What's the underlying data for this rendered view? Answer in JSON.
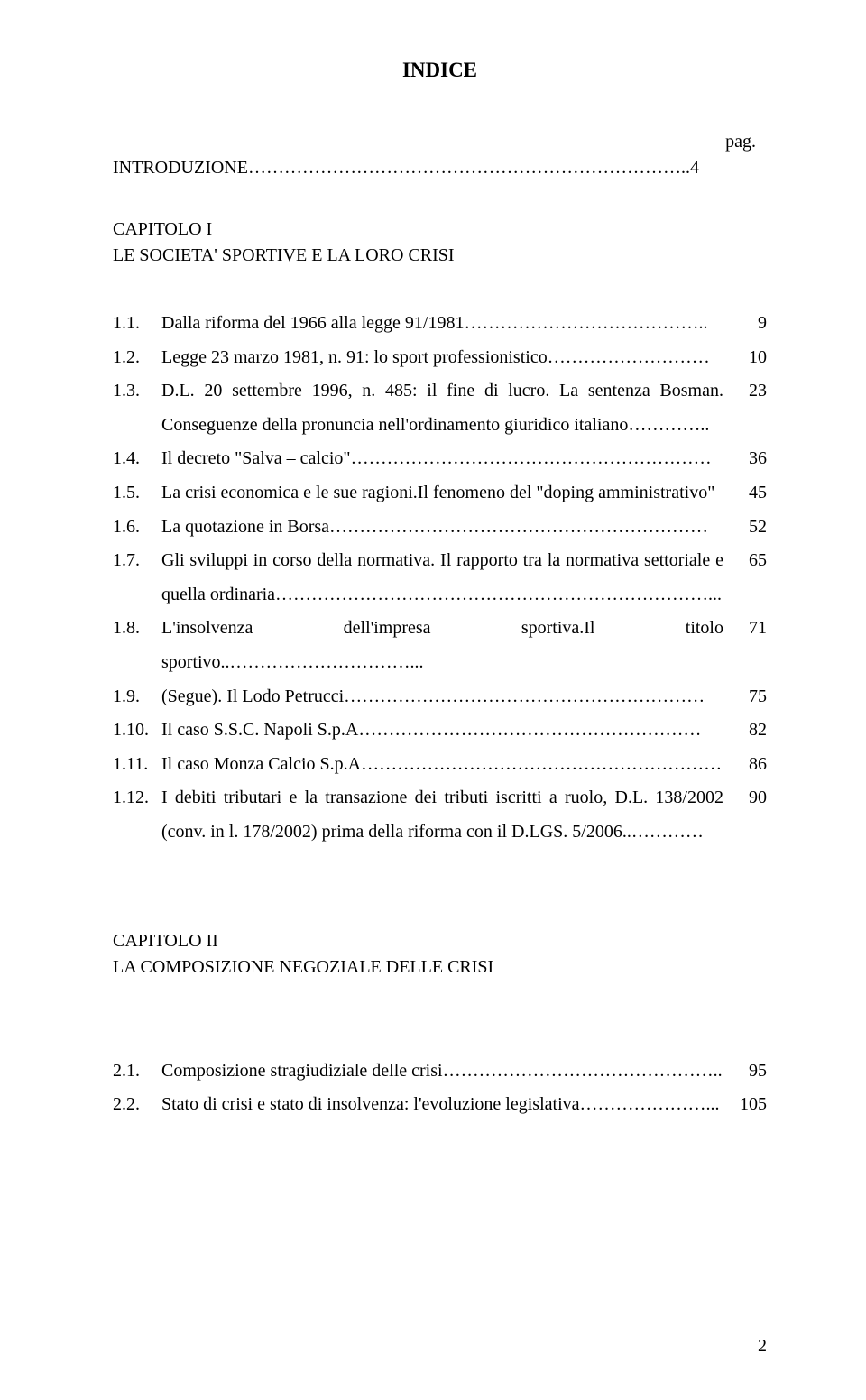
{
  "title": "INDICE",
  "pagLabel": "pag.",
  "intro": "INTRODUZIONE………………………………………………………………..4",
  "chapter1": {
    "header": "CAPITOLO I",
    "title": "LE SOCIETA' SPORTIVE E  LA LORO CRISI",
    "entries": [
      {
        "num": "1.1.",
        "text": "Dalla riforma del 1966 alla legge 91/1981…………………………………..",
        "page": "9"
      },
      {
        "num": "1.2.",
        "text": "Legge 23 marzo 1981, n. 91: lo sport professionistico………………………",
        "page": "10"
      },
      {
        "num": "1.3.",
        "text": "D.L. 20 settembre 1996, n. 485: il fine di lucro. La sentenza Bosman. Conseguenze della pronuncia nell'ordinamento giuridico italiano…………..",
        "page": "23"
      },
      {
        "num": "1.4.",
        "text": "Il decreto \"Salva – calcio\"……………………………………………………",
        "page": "36"
      },
      {
        "num": "1.5.",
        "text": "La crisi economica e le sue ragioni.Il fenomeno del \"doping amministrativo\"",
        "page": "45"
      },
      {
        "num": "1.6.",
        "text": "La quotazione in Borsa………………………………………………………",
        "page": "52"
      },
      {
        "num": "1.7.",
        "text": "Gli sviluppi in corso della normativa. Il rapporto tra la normativa settoriale e quella ordinaria………………………………………………………………...",
        "page": "65"
      },
      {
        "num": "1.8.",
        "text": "L'insolvenza dell'impresa sportiva.Il titolo sportivo..…………………………...",
        "page": "71"
      },
      {
        "num": "1.9.",
        "text": "(Segue). Il Lodo Petrucci……………………………………………………",
        "page": "75"
      },
      {
        "num": "1.10.",
        "text": "Il caso S.S.C. Napoli S.p.A…………………………………………………",
        "page": "82"
      },
      {
        "num": "1.11.",
        "text": "Il caso Monza Calcio S.p.A……………………………………………………",
        "page": "86"
      },
      {
        "num": "1.12.",
        "text": "I debiti tributari e la transazione dei tributi iscritti a ruolo, D.L. 138/2002 (conv. in l. 178/2002) prima della riforma con il D.LGS. 5/2006..…………",
        "page": "90"
      }
    ]
  },
  "chapter2": {
    "header": "CAPITOLO II",
    "title": "LA COMPOSIZIONE NEGOZIALE DELLE CRISI",
    "entries": [
      {
        "num": "2.1.",
        "text": "Composizione stragiudiziale delle crisi………………………………………..",
        "page": "95"
      },
      {
        "num": "2.2.",
        "text": "Stato di crisi e stato di insolvenza: l'evoluzione legislativa…………………...",
        "page": "105"
      }
    ]
  },
  "pageNumber": "2"
}
